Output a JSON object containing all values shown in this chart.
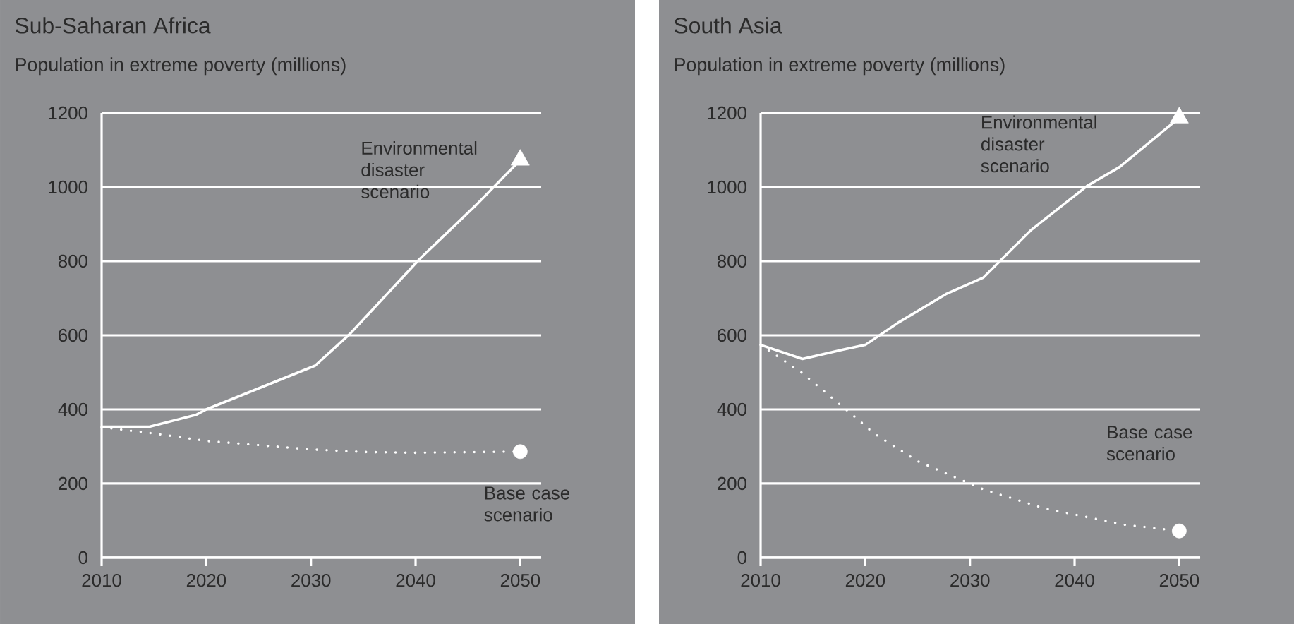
{
  "chart_data": [
    {
      "type": "line",
      "title": "Sub-Saharan Africa",
      "ylabel": "Population in extreme poverty (millions)",
      "xlim": [
        2010,
        2052
      ],
      "ylim": [
        0,
        1200
      ],
      "xticks": [
        2010,
        2020,
        2030,
        2040,
        2050
      ],
      "yticks": [
        0,
        200,
        400,
        600,
        800,
        1000,
        1200
      ],
      "grid": "y",
      "series": [
        {
          "color": "#ffffff",
          "line_style": "solid",
          "x": [
            2010,
            2014.5,
            2019,
            2020,
            2030.4,
            2033.7,
            2040.4,
            2045.8,
            2050
          ],
          "values": [
            353,
            353,
            385,
            400,
            518,
            603,
            806,
            952,
            1073
          ]
        },
        {
          "color": "#ffffff",
          "line_style": "dotted",
          "x": [
            2010,
            2015,
            2020,
            2030,
            2035,
            2040,
            2050
          ],
          "values": [
            352,
            335,
            315,
            292,
            285,
            283,
            286
          ]
        },
        {
          "type": "scatter",
          "color": "#ffffff",
          "marker": "triangle",
          "x": [
            2050
          ],
          "values": [
            1073
          ]
        },
        {
          "type": "scatter",
          "color": "#ffffff",
          "marker": "circle",
          "x": [
            2050
          ],
          "values": [
            286
          ]
        }
      ],
      "annotations": [
        "Environmental disaster scenario",
        "Base case scenario"
      ]
    },
    {
      "type": "line",
      "title": "South Asia",
      "ylabel": "Population in extreme poverty (millions)",
      "xlim": [
        2010,
        2052
      ],
      "ylim": [
        0,
        1200
      ],
      "xticks": [
        2010,
        2020,
        2030,
        2040,
        2050
      ],
      "yticks": [
        0,
        200,
        400,
        600,
        800,
        1000,
        1200
      ],
      "grid": "y",
      "series": [
        {
          "color": "#ffffff",
          "line_style": "solid",
          "x": [
            2010,
            2014,
            2017.8,
            2020,
            2023.2,
            2027.7,
            2031.3,
            2035.8,
            2041.2,
            2044.3,
            2050
          ],
          "values": [
            574,
            536,
            561,
            574,
            635,
            711,
            756,
            883,
            1003,
            1054,
            1187
          ]
        },
        {
          "color": "#ffffff",
          "line_style": "dotted",
          "x": [
            2010,
            2013.8,
            2018.7,
            2020.8,
            2025,
            2031.3,
            2037.1,
            2044.7,
            2050
          ],
          "values": [
            574,
            502,
            387,
            336,
            260,
            184,
            133,
            89,
            72
          ]
        },
        {
          "type": "scatter",
          "color": "#ffffff",
          "marker": "triangle",
          "x": [
            2050
          ],
          "values": [
            1187
          ]
        },
        {
          "type": "scatter",
          "color": "#ffffff",
          "marker": "circle",
          "x": [
            2050
          ],
          "values": [
            72
          ]
        }
      ],
      "annotations": [
        "Environmental disaster scenario",
        "Base case scenario"
      ]
    }
  ]
}
